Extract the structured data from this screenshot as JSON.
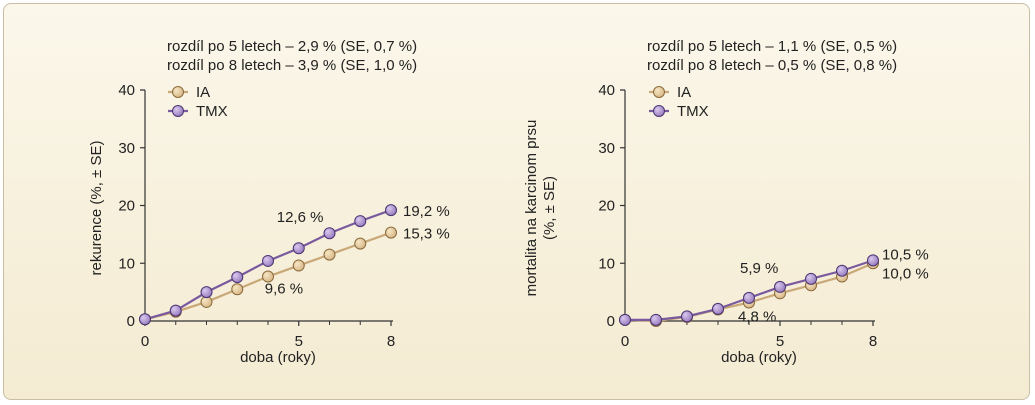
{
  "colors": {
    "ia": "#d9b98a",
    "ia_stroke": "#8a6a3c",
    "tmx": "#9b7fc0",
    "tmx_stroke": "#4b3472",
    "ia_line": "#c9a878",
    "tmx_line": "#7a5a9e"
  },
  "chart_data": [
    {
      "type": "line",
      "annotation_lines": [
        "rozdíl po 5 letech – 2,9 % (SE, 0,7 %)",
        "rozdíl po 8 letech – 3,9 % (SE, 1,0 %)"
      ],
      "xlabel": "doba (roky)",
      "ylabel_lines": [
        "rekurence (%, ± SE)"
      ],
      "xlim": [
        0,
        8
      ],
      "ylim": [
        0,
        40
      ],
      "xticks": [
        "0",
        "5",
        "8"
      ],
      "xtick_values": [
        0,
        5,
        8
      ],
      "yticks": [
        "0",
        "10",
        "20",
        "30",
        "40"
      ],
      "ytick_values": [
        0,
        10,
        20,
        30,
        40
      ],
      "legend_position": "top-left",
      "x": [
        0,
        1,
        2,
        3,
        4,
        5,
        6,
        7,
        8
      ],
      "series": [
        {
          "name": "IA",
          "values": [
            0.3,
            1.6,
            3.3,
            5.5,
            7.7,
            9.6,
            11.5,
            13.4,
            15.3
          ]
        },
        {
          "name": "TMX",
          "values": [
            0.3,
            1.8,
            5.0,
            7.6,
            10.4,
            12.6,
            15.2,
            17.3,
            19.2
          ]
        }
      ],
      "data_labels": [
        {
          "text": "19,2 %",
          "series": "TMX",
          "x": 8
        },
        {
          "text": "15,3 %",
          "series": "IA",
          "x": 8
        },
        {
          "text": "12,6 %",
          "series": "TMX",
          "x": 5
        },
        {
          "text": "9,6 %",
          "series": "IA",
          "x": 5
        }
      ]
    },
    {
      "type": "line",
      "annotation_lines": [
        "rozdíl po 5 letech – 1,1 % (SE, 0,5 %)",
        "rozdíl po 8 letech – 0,5 % (SE, 0,8 %)"
      ],
      "xlabel": "doba (roky)",
      "ylabel_lines": [
        "mortalita na karcinom prsu",
        "(%, ± SE)"
      ],
      "xlim": [
        0,
        8
      ],
      "ylim": [
        0,
        40
      ],
      "xticks": [
        "0",
        "5",
        "8"
      ],
      "xtick_values": [
        0,
        5,
        8
      ],
      "yticks": [
        "0",
        "10",
        "20",
        "30",
        "40"
      ],
      "ytick_values": [
        0,
        10,
        20,
        30,
        40
      ],
      "legend_position": "top-left",
      "x": [
        0,
        1,
        2,
        3,
        4,
        5,
        6,
        7,
        8
      ],
      "series": [
        {
          "name": "IA",
          "values": [
            0.2,
            0.0,
            0.7,
            2.0,
            3.2,
            4.8,
            6.2,
            7.7,
            10.0
          ]
        },
        {
          "name": "TMX",
          "values": [
            0.2,
            0.2,
            0.8,
            2.1,
            4.0,
            5.9,
            7.3,
            8.7,
            10.5
          ]
        }
      ],
      "data_labels": [
        {
          "text": "10,5 %",
          "series": "TMX",
          "x": 8
        },
        {
          "text": "10,0 %",
          "series": "IA",
          "x": 8
        },
        {
          "text": "5,9 %",
          "series": "TMX",
          "x": 5
        },
        {
          "text": "4,8 %",
          "series": "IA",
          "x": 5
        }
      ]
    }
  ]
}
